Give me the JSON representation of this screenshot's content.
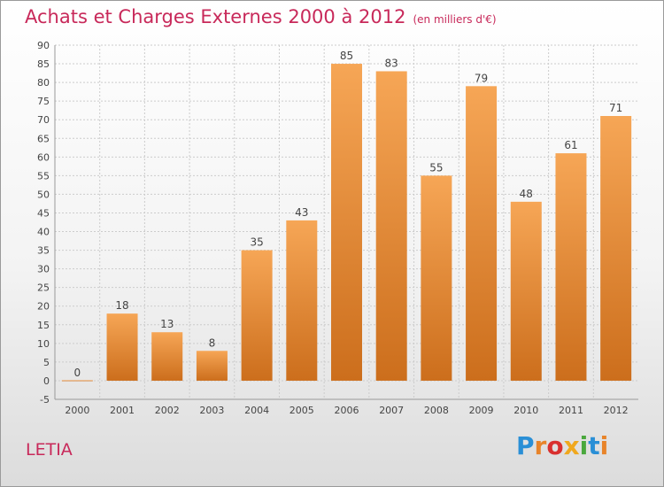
{
  "title": "Achats et Charges Externes 2000 à 2012",
  "unit_label": "(en milliers d'€)",
  "place_label": "LETIA",
  "logo_text": "Proxiti",
  "colors": {
    "title": "#c8295a",
    "bar_top": "#f6a656",
    "bar_bottom": "#cc6e1c",
    "grid": "#cccccc"
  },
  "chart_data": {
    "type": "bar",
    "title": "Achats et Charges Externes 2000 à 2012",
    "subtitle": "(en milliers d'€)",
    "xlabel": "",
    "ylabel": "",
    "categories": [
      "2000",
      "2001",
      "2002",
      "2003",
      "2004",
      "2005",
      "2006",
      "2007",
      "2008",
      "2009",
      "2010",
      "2011",
      "2012"
    ],
    "values": [
      0,
      18,
      13,
      8,
      35,
      43,
      85,
      83,
      55,
      79,
      48,
      61,
      71
    ],
    "ylim": [
      -5,
      90
    ],
    "yticks": [
      -5,
      0,
      5,
      10,
      15,
      20,
      25,
      30,
      35,
      40,
      45,
      50,
      55,
      60,
      65,
      70,
      75,
      80,
      85,
      90
    ],
    "grid": true,
    "legend": "none"
  }
}
